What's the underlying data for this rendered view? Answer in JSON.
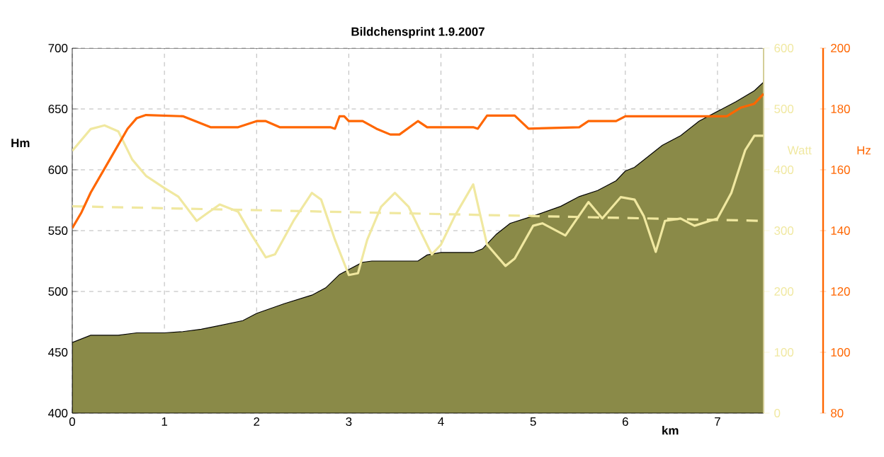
{
  "chart_data": {
    "type": "line",
    "title": "Bildchensprint 1.9.2007",
    "xlabel": "km",
    "ylabel": "Hm",
    "y2label": "Watt",
    "y3label": "Hz",
    "xlim": [
      0,
      7.5
    ],
    "xticks": [
      0,
      1,
      2,
      3,
      4,
      5,
      6,
      7
    ],
    "ylim": [
      400,
      700
    ],
    "yticks": [
      400,
      450,
      500,
      550,
      600,
      650,
      700
    ],
    "y2lim": [
      0,
      600
    ],
    "y2ticks": [
      0,
      100,
      200,
      300,
      400,
      500,
      600
    ],
    "y3lim": [
      80,
      200
    ],
    "y3ticks": [
      80,
      100,
      120,
      140,
      160,
      180,
      200
    ],
    "grid": true,
    "series": [
      {
        "type": "area",
        "color": "#8a8a48",
        "x": [
          0,
          0.2,
          0.5,
          0.7,
          1.0,
          1.2,
          1.4,
          1.6,
          1.85,
          2.0,
          2.3,
          2.6,
          2.75,
          2.9,
          3.0,
          3.15,
          3.25,
          3.5,
          3.75,
          3.85,
          4.0,
          4.35,
          4.45,
          4.6,
          4.75,
          5.0,
          5.3,
          5.5,
          5.7,
          5.9,
          6.0,
          6.1,
          6.3,
          6.4,
          6.6,
          6.8,
          7.0,
          7.2,
          7.4,
          7.5
        ],
        "values": [
          458,
          464,
          464,
          466,
          466,
          467,
          469,
          472,
          476,
          482,
          490,
          497,
          503,
          514,
          518,
          524,
          525,
          525,
          525,
          530,
          532,
          532,
          535,
          547,
          556,
          562,
          570,
          578,
          583,
          591,
          599,
          602,
          614,
          620,
          628,
          640,
          648,
          656,
          665,
          672
        ]
      },
      {
        "axis": "y2",
        "color": "#f0e8a0",
        "x": [
          0,
          0.2,
          0.35,
          0.5,
          0.65,
          0.8,
          1.0,
          1.15,
          1.35,
          1.45,
          1.6,
          1.8,
          1.95,
          2.1,
          2.2,
          2.4,
          2.6,
          2.7,
          2.85,
          3.0,
          3.1,
          3.2,
          3.35,
          3.5,
          3.65,
          3.8,
          3.9,
          4.0,
          4.15,
          4.35,
          4.5,
          4.7,
          4.8,
          5.0,
          5.1,
          5.35,
          5.6,
          5.75,
          5.95,
          6.1,
          6.2,
          6.33,
          6.43,
          6.6,
          6.75,
          7.0,
          7.15,
          7.3,
          7.4,
          7.5
        ],
        "values": [
          431,
          467,
          473,
          463,
          417,
          390,
          370,
          356,
          316,
          327,
          343,
          331,
          292,
          256,
          261,
          316,
          362,
          351,
          285,
          227,
          230,
          285,
          339,
          362,
          339,
          292,
          261,
          277,
          324,
          376,
          277,
          242,
          254,
          308,
          312,
          292,
          347,
          320,
          355,
          351,
          324,
          265,
          316,
          320,
          308,
          320,
          362,
          432,
          456,
          456
        ]
      },
      {
        "type": "line",
        "axis": "y2",
        "line_style": "dashed",
        "color": "#f0e8a0",
        "x": [
          0,
          7.5
        ],
        "values": [
          340,
          316
        ]
      },
      {
        "axis": "y3",
        "color": "#ff6600",
        "x": [
          0,
          0.1,
          0.2,
          0.4,
          0.6,
          0.7,
          0.8,
          1.2,
          1.5,
          1.8,
          2.0,
          2.1,
          2.25,
          2.8,
          2.85,
          2.9,
          2.95,
          3.0,
          3.15,
          3.3,
          3.45,
          3.55,
          3.75,
          3.85,
          4.35,
          4.4,
          4.5,
          4.8,
          4.95,
          5.5,
          5.6,
          5.9,
          6.0,
          7.1,
          7.25,
          7.4,
          7.5
        ],
        "values": [
          140.8,
          146,
          152.5,
          163,
          173.5,
          177,
          178,
          177.6,
          174,
          174,
          176,
          176,
          174,
          174,
          173.5,
          177.6,
          177.6,
          176,
          176,
          173.5,
          171.6,
          171.6,
          176,
          174,
          174,
          173.5,
          177.8,
          177.8,
          173.5,
          174,
          176,
          176,
          177.6,
          177.6,
          180.4,
          181.7,
          185
        ]
      }
    ]
  }
}
